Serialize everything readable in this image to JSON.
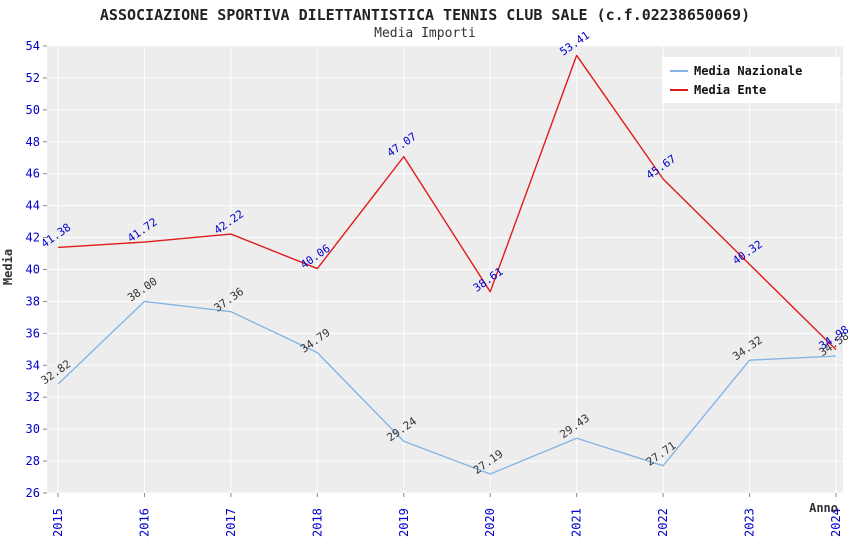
{
  "page": {
    "title": "ASSOCIAZIONE SPORTIVA DILETTANTISTICA TENNIS CLUB SALE (c.f.02238650069)",
    "subtitle": "Media Importi"
  },
  "chart_data": {
    "type": "line",
    "title": "ASSOCIAZIONE SPORTIVA DILETTANTISTICA TENNIS CLUB SALE (c.f.02238650069)",
    "subtitle": "Media Importi",
    "xlabel": "Anno",
    "ylabel": "Media",
    "categories": [
      "2015",
      "2016",
      "2017",
      "2018",
      "2019",
      "2020",
      "2021",
      "2022",
      "2023",
      "2024"
    ],
    "series": [
      {
        "name": "Media Nazionale",
        "color": "#86B5E5",
        "label_color": "#333333",
        "values": [
          32.82,
          38.0,
          37.36,
          34.79,
          29.24,
          27.19,
          29.43,
          27.71,
          34.32,
          34.58
        ]
      },
      {
        "name": "Media Ente",
        "color": "#E01B1B",
        "label_color": "#0000CC",
        "values": [
          41.38,
          41.72,
          42.22,
          40.06,
          47.07,
          38.61,
          53.41,
          45.67,
          40.32,
          34.98
        ]
      }
    ],
    "ylim": [
      26,
      54
    ],
    "yticks": [
      26,
      28,
      30,
      32,
      34,
      36,
      38,
      40,
      42,
      44,
      46,
      48,
      50,
      52,
      54
    ],
    "grid": true,
    "legend_position": "top-right",
    "plot_bg": "#EDEDED",
    "grid_color": "#FFFFFF",
    "tick_color": "#0000CC",
    "tick_mark_color": "#888888",
    "legend_text_color": "#111111"
  }
}
